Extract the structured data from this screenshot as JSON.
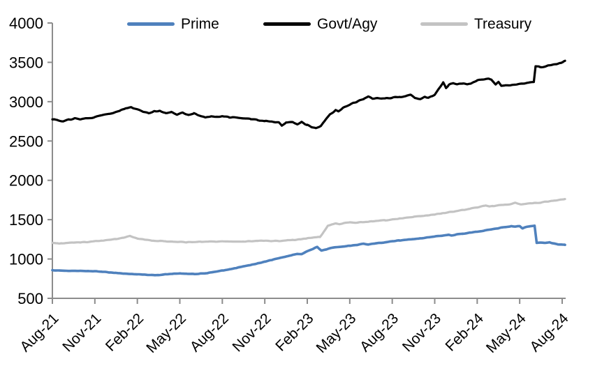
{
  "chart_data": {
    "type": "line",
    "title": "",
    "xlabel": "",
    "ylabel": "",
    "grid": false,
    "legend_position": "top",
    "axis_color": "#8c8c8c",
    "label_color": "#000000",
    "background": "#ffffff",
    "ylim": [
      500,
      4000
    ],
    "y_ticks": [
      500,
      1000,
      1500,
      2000,
      2500,
      3000,
      3500,
      4000
    ],
    "x_range": [
      0,
      36.3
    ],
    "x_tick_positions": [
      0,
      3,
      6,
      9,
      12,
      15,
      18,
      21,
      24,
      27,
      30,
      33,
      36
    ],
    "x_tick_labels": [
      "Aug-21",
      "Nov-21",
      "Feb-22",
      "May-22",
      "Aug-22",
      "Nov-22",
      "Feb-23",
      "May-23",
      "Aug-23",
      "Nov-23",
      "Feb-24",
      "May-24",
      "Aug-24"
    ],
    "series": [
      {
        "name": "Prime",
        "color": "#4f81bd",
        "line_width": 3.6,
        "wobble": 4,
        "points": [
          [
            0,
            858
          ],
          [
            0.5,
            852
          ],
          [
            1,
            850
          ],
          [
            1.5,
            849
          ],
          [
            2,
            848
          ],
          [
            2.5,
            847
          ],
          [
            3,
            845
          ],
          [
            3.5,
            838
          ],
          [
            4,
            830
          ],
          [
            4.5,
            823
          ],
          [
            5,
            816
          ],
          [
            5.5,
            810
          ],
          [
            6,
            805
          ],
          [
            6.5,
            800
          ],
          [
            7,
            797
          ],
          [
            7.5,
            795
          ],
          [
            8,
            806
          ],
          [
            8.5,
            812
          ],
          [
            9,
            816
          ],
          [
            9.5,
            812
          ],
          [
            10,
            810
          ],
          [
            10.5,
            814
          ],
          [
            11,
            824
          ],
          [
            11.5,
            836
          ],
          [
            12,
            852
          ],
          [
            12.5,
            868
          ],
          [
            13,
            886
          ],
          [
            13.5,
            905
          ],
          [
            14,
            924
          ],
          [
            14.5,
            944
          ],
          [
            15,
            966
          ],
          [
            15.5,
            988
          ],
          [
            16,
            1010
          ],
          [
            16.5,
            1030
          ],
          [
            17,
            1052
          ],
          [
            17.3,
            1066
          ],
          [
            17.6,
            1062
          ],
          [
            18,
            1098
          ],
          [
            18.4,
            1128
          ],
          [
            18.7,
            1155
          ],
          [
            19,
            1108
          ],
          [
            19.4,
            1126
          ],
          [
            19.7,
            1140
          ],
          [
            20,
            1148
          ],
          [
            20.5,
            1158
          ],
          [
            21,
            1168
          ],
          [
            21.5,
            1180
          ],
          [
            22,
            1195
          ],
          [
            22.3,
            1184
          ],
          [
            22.7,
            1192
          ],
          [
            23,
            1200
          ],
          [
            23.5,
            1212
          ],
          [
            24,
            1226
          ],
          [
            24.5,
            1236
          ],
          [
            25,
            1245
          ],
          [
            25.5,
            1254
          ],
          [
            26,
            1262
          ],
          [
            26.5,
            1274
          ],
          [
            27,
            1286
          ],
          [
            27.5,
            1296
          ],
          [
            28,
            1306
          ],
          [
            28.2,
            1298
          ],
          [
            28.5,
            1312
          ],
          [
            29,
            1322
          ],
          [
            29.5,
            1334
          ],
          [
            30,
            1348
          ],
          [
            30.5,
            1362
          ],
          [
            31,
            1378
          ],
          [
            31.5,
            1392
          ],
          [
            32,
            1405
          ],
          [
            32.4,
            1418
          ],
          [
            32.7,
            1412
          ],
          [
            33,
            1420
          ],
          [
            33.2,
            1388
          ],
          [
            33.45,
            1408
          ],
          [
            33.7,
            1415
          ],
          [
            34.05,
            1422
          ],
          [
            34.2,
            1205
          ],
          [
            34.5,
            1210
          ],
          [
            34.8,
            1203
          ],
          [
            35.1,
            1212
          ],
          [
            35.4,
            1196
          ],
          [
            35.7,
            1187
          ],
          [
            36.2,
            1180
          ]
        ]
      },
      {
        "name": "Govt/Agy",
        "color": "#000000",
        "line_width": 3.2,
        "wobble": 9,
        "points": [
          [
            0,
            2775
          ],
          [
            0.4,
            2762
          ],
          [
            0.8,
            2748
          ],
          [
            1.2,
            2772
          ],
          [
            1.6,
            2788
          ],
          [
            2,
            2778
          ],
          [
            2.4,
            2792
          ],
          [
            2.8,
            2798
          ],
          [
            3.2,
            2812
          ],
          [
            3.6,
            2832
          ],
          [
            4,
            2848
          ],
          [
            4.4,
            2862
          ],
          [
            4.8,
            2888
          ],
          [
            5.2,
            2912
          ],
          [
            5.6,
            2930
          ],
          [
            6,
            2908
          ],
          [
            6.4,
            2872
          ],
          [
            6.8,
            2858
          ],
          [
            7.2,
            2878
          ],
          [
            7.6,
            2882
          ],
          [
            8,
            2855
          ],
          [
            8.4,
            2872
          ],
          [
            8.8,
            2838
          ],
          [
            9.2,
            2862
          ],
          [
            9.6,
            2828
          ],
          [
            10,
            2852
          ],
          [
            10.4,
            2820
          ],
          [
            10.8,
            2802
          ],
          [
            11.2,
            2812
          ],
          [
            11.6,
            2808
          ],
          [
            12,
            2815
          ],
          [
            12.5,
            2802
          ],
          [
            13,
            2798
          ],
          [
            13.5,
            2788
          ],
          [
            14,
            2778
          ],
          [
            14.5,
            2765
          ],
          [
            15,
            2752
          ],
          [
            15.5,
            2742
          ],
          [
            16,
            2732
          ],
          [
            16.2,
            2698
          ],
          [
            16.5,
            2742
          ],
          [
            17,
            2735
          ],
          [
            17.3,
            2708
          ],
          [
            17.6,
            2738
          ],
          [
            18,
            2705
          ],
          [
            18.3,
            2678
          ],
          [
            18.6,
            2663
          ],
          [
            19,
            2698
          ],
          [
            19.3,
            2772
          ],
          [
            19.6,
            2840
          ],
          [
            20,
            2895
          ],
          [
            20.2,
            2878
          ],
          [
            20.5,
            2915
          ],
          [
            21,
            2962
          ],
          [
            21.5,
            3000
          ],
          [
            22,
            3035
          ],
          [
            22.3,
            3062
          ],
          [
            22.6,
            3040
          ],
          [
            23,
            3048
          ],
          [
            23.5,
            3042
          ],
          [
            24,
            3052
          ],
          [
            24.5,
            3058
          ],
          [
            25,
            3072
          ],
          [
            25.3,
            3085
          ],
          [
            25.6,
            3048
          ],
          [
            26,
            3035
          ],
          [
            26.3,
            3060
          ],
          [
            26.6,
            3052
          ],
          [
            27,
            3088
          ],
          [
            27.3,
            3165
          ],
          [
            27.6,
            3245
          ],
          [
            27.8,
            3175
          ],
          [
            28,
            3212
          ],
          [
            28.3,
            3238
          ],
          [
            28.6,
            3218
          ],
          [
            29,
            3228
          ],
          [
            29.3,
            3215
          ],
          [
            29.6,
            3238
          ],
          [
            30,
            3268
          ],
          [
            30.4,
            3285
          ],
          [
            30.8,
            3292
          ],
          [
            31,
            3282
          ],
          [
            31.3,
            3222
          ],
          [
            31.5,
            3252
          ],
          [
            31.7,
            3198
          ],
          [
            32,
            3215
          ],
          [
            32.4,
            3212
          ],
          [
            32.8,
            3220
          ],
          [
            33.2,
            3228
          ],
          [
            33.6,
            3240
          ],
          [
            34,
            3250
          ],
          [
            34.12,
            3452
          ],
          [
            34.4,
            3445
          ],
          [
            34.7,
            3440
          ],
          [
            35,
            3456
          ],
          [
            35.3,
            3464
          ],
          [
            35.6,
            3478
          ],
          [
            35.9,
            3492
          ],
          [
            36.2,
            3520
          ]
        ]
      },
      {
        "name": "Treasury",
        "color": "#c3c3c3",
        "line_width": 3.2,
        "wobble": 5,
        "points": [
          [
            0,
            1205
          ],
          [
            0.5,
            1198
          ],
          [
            1,
            1203
          ],
          [
            1.5,
            1208
          ],
          [
            2,
            1213
          ],
          [
            2.5,
            1218
          ],
          [
            3,
            1226
          ],
          [
            3.5,
            1233
          ],
          [
            4,
            1243
          ],
          [
            4.5,
            1254
          ],
          [
            5,
            1268
          ],
          [
            5.5,
            1292
          ],
          [
            6,
            1264
          ],
          [
            6.5,
            1246
          ],
          [
            7,
            1236
          ],
          [
            7.5,
            1229
          ],
          [
            8,
            1225
          ],
          [
            8.5,
            1219
          ],
          [
            9,
            1221
          ],
          [
            9.5,
            1213
          ],
          [
            10,
            1216
          ],
          [
            10.5,
            1219
          ],
          [
            11,
            1223
          ],
          [
            11.5,
            1220
          ],
          [
            12,
            1226
          ],
          [
            12.5,
            1219
          ],
          [
            13,
            1223
          ],
          [
            13.5,
            1221
          ],
          [
            14,
            1227
          ],
          [
            14.5,
            1231
          ],
          [
            15,
            1233
          ],
          [
            15.5,
            1227
          ],
          [
            16,
            1230
          ],
          [
            16.5,
            1236
          ],
          [
            17,
            1242
          ],
          [
            17.5,
            1250
          ],
          [
            18,
            1262
          ],
          [
            18.5,
            1274
          ],
          [
            18.9,
            1282
          ],
          [
            19.15,
            1340
          ],
          [
            19.45,
            1425
          ],
          [
            19.7,
            1438
          ],
          [
            20,
            1450
          ],
          [
            20.3,
            1444
          ],
          [
            20.6,
            1456
          ],
          [
            21,
            1464
          ],
          [
            21.4,
            1459
          ],
          [
            21.8,
            1468
          ],
          [
            22.2,
            1473
          ],
          [
            22.6,
            1478
          ],
          [
            23,
            1484
          ],
          [
            23.5,
            1492
          ],
          [
            24,
            1502
          ],
          [
            24.5,
            1512
          ],
          [
            25,
            1524
          ],
          [
            25.5,
            1534
          ],
          [
            26,
            1546
          ],
          [
            26.5,
            1556
          ],
          [
            27,
            1566
          ],
          [
            27.5,
            1580
          ],
          [
            28,
            1594
          ],
          [
            28.5,
            1608
          ],
          [
            29,
            1624
          ],
          [
            29.5,
            1640
          ],
          [
            30,
            1656
          ],
          [
            30.3,
            1670
          ],
          [
            30.6,
            1682
          ],
          [
            30.85,
            1664
          ],
          [
            31.1,
            1674
          ],
          [
            31.5,
            1682
          ],
          [
            32,
            1688
          ],
          [
            32.4,
            1697
          ],
          [
            32.7,
            1718
          ],
          [
            33.1,
            1692
          ],
          [
            33.5,
            1702
          ],
          [
            34,
            1710
          ],
          [
            34.5,
            1718
          ],
          [
            35,
            1730
          ],
          [
            35.5,
            1742
          ],
          [
            36.2,
            1762
          ]
        ]
      }
    ]
  }
}
